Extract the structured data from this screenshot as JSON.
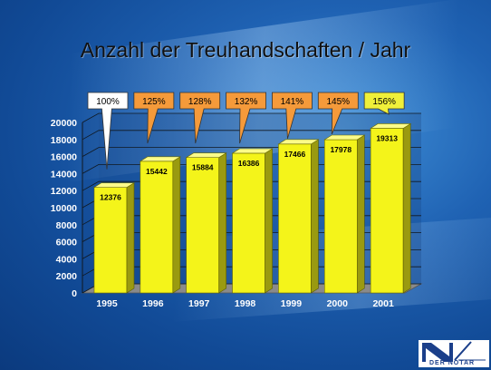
{
  "slide": {
    "title": "Anzahl der Treuhandschaften / Jahr"
  },
  "logo": {
    "text": "DER NOTAR"
  },
  "colors": {
    "bar_face": "#f4f41a",
    "bar_side": "#9a9a10",
    "bar_top": "#fbfb8a",
    "callout_white": "#ffffff",
    "callout_orange": "#f59a3a",
    "callout_yellow": "#f0f03a",
    "tick_text": "#ffffff"
  },
  "chart_data": {
    "type": "bar",
    "title": "Anzahl der Treuhandschaften / Jahr",
    "xlabel": "",
    "ylabel": "",
    "categories": [
      "1995",
      "1996",
      "1997",
      "1998",
      "1999",
      "2000",
      "2001"
    ],
    "values": [
      12376,
      15442,
      15884,
      16386,
      17466,
      17978,
      19313
    ],
    "data_labels": [
      "12376",
      "15442",
      "15884",
      "16386",
      "17466",
      "17978",
      "19313"
    ],
    "percent_callouts": [
      {
        "text": "100%",
        "style": "white"
      },
      {
        "text": "125%",
        "style": "orange"
      },
      {
        "text": "128%",
        "style": "orange"
      },
      {
        "text": "132%",
        "style": "orange"
      },
      {
        "text": "141%",
        "style": "orange"
      },
      {
        "text": "145%",
        "style": "orange"
      },
      {
        "text": "156%",
        "style": "yellow"
      }
    ],
    "ylim": [
      0,
      20000
    ],
    "yticks": [
      "0",
      "2000",
      "4000",
      "6000",
      "8000",
      "10000",
      "12000",
      "14000",
      "16000",
      "18000",
      "20000"
    ],
    "grid": true,
    "legend": "none"
  }
}
